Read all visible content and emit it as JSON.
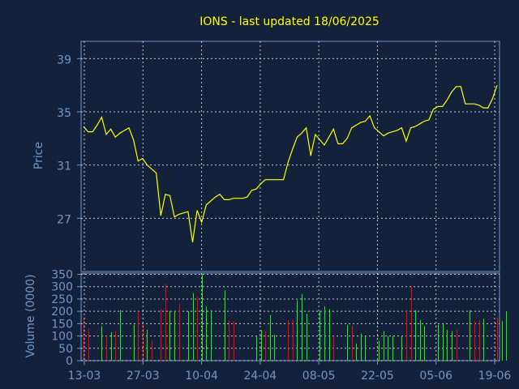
{
  "chart_data": [
    {
      "type": "line",
      "title": "IONS - last updated 18/06/2025",
      "ylabel": "Price",
      "ylim": [
        23.0,
        40.3
      ],
      "yticks": [
        "27",
        "31",
        "35",
        "39"
      ],
      "grid": true,
      "colors": {
        "background": "#13213a",
        "frame": "#6e96c8",
        "grid": "#ffffff",
        "line": "#ffff00",
        "title": "#ffff00"
      },
      "values": [
        33.9,
        33.5,
        33.5,
        34.0,
        34.6,
        33.3,
        33.7,
        33.1,
        33.4,
        33.6,
        33.8,
        32.9,
        31.3,
        31.5,
        31.0,
        30.7,
        30.4,
        27.2,
        28.8,
        28.7,
        27.1,
        27.3,
        27.4,
        27.5,
        25.2,
        27.6,
        26.7,
        28.0,
        28.3,
        28.6,
        28.8,
        28.4,
        28.4,
        28.5,
        28.5,
        28.5,
        28.6,
        29.1,
        29.2,
        29.6,
        29.9,
        29.9,
        29.9,
        29.9,
        29.9,
        31.2,
        32.2,
        33.1,
        33.4,
        33.8,
        31.7,
        33.3,
        32.9,
        32.5,
        33.1,
        33.7,
        32.6,
        32.6,
        33.0,
        33.8,
        34.0,
        34.2,
        34.3,
        34.7,
        33.8,
        33.5,
        33.2,
        33.4,
        33.5,
        33.6,
        33.8,
        32.8,
        33.8,
        33.9,
        34.1,
        34.3,
        34.4,
        35.2,
        35.4,
        35.4,
        35.9,
        36.5,
        36.9,
        36.9,
        35.6,
        35.6,
        35.6,
        35.5,
        35.3,
        35.3,
        36.0,
        37.0
      ]
    },
    {
      "type": "bar",
      "ylabel": "Volume (0000)",
      "ylim": [
        0,
        355
      ],
      "yticks": [
        "0",
        "50",
        "100",
        "150",
        "200",
        "250",
        "300",
        "350"
      ],
      "xticks": [
        "13-03",
        "27-03",
        "10-04",
        "24-04",
        "08-05",
        "22-05",
        "05-06",
        "19-06"
      ],
      "grid": true,
      "colors": {
        "up": "#00ff00",
        "down": "#ff0000"
      },
      "values": [
        175,
        130,
        0,
        0,
        140,
        100,
        115,
        120,
        205,
        0,
        0,
        145,
        200,
        150,
        125,
        80,
        0,
        210,
        310,
        200,
        200,
        230,
        0,
        200,
        275,
        260,
        350,
        220,
        205,
        0,
        0,
        285,
        165,
        160,
        0,
        0,
        0,
        0,
        100,
        125,
        120,
        185,
        105,
        0,
        0,
        165,
        165,
        245,
        270,
        190,
        0,
        0,
        200,
        220,
        210,
        100,
        0,
        0,
        145,
        140,
        70,
        110,
        100,
        0,
        0,
        80,
        120,
        100,
        100,
        0,
        100,
        200,
        300,
        205,
        165,
        140,
        0,
        0,
        145,
        150,
        125,
        120,
        125,
        0,
        0,
        205,
        160,
        165,
        170,
        0,
        0,
        175,
        160,
        200
      ],
      "directions": [
        "down",
        "down",
        "up",
        "up",
        "up",
        "down",
        "up",
        "down",
        "up",
        "up",
        "up",
        "up",
        "down",
        "down",
        "up",
        "down",
        "up",
        "down",
        "down",
        "up",
        "up",
        "down",
        "up",
        "up",
        "up",
        "down",
        "up",
        "up",
        "up",
        "up",
        "up",
        "up",
        "down",
        "down",
        "up",
        "up",
        "up",
        "up",
        "up",
        "up",
        "down",
        "up",
        "up",
        "up",
        "up",
        "down",
        "down",
        "up",
        "up",
        "up",
        "up",
        "up",
        "up",
        "up",
        "up",
        "down",
        "up",
        "up",
        "up",
        "down",
        "up",
        "up",
        "up",
        "up",
        "up",
        "up",
        "up",
        "up",
        "up",
        "up",
        "up",
        "down",
        "down",
        "up",
        "up",
        "up",
        "up",
        "up",
        "up",
        "up",
        "up",
        "up",
        "down",
        "up",
        "up",
        "up",
        "down",
        "down",
        "up",
        "up",
        "up",
        "down",
        "up",
        "up"
      ]
    }
  ]
}
